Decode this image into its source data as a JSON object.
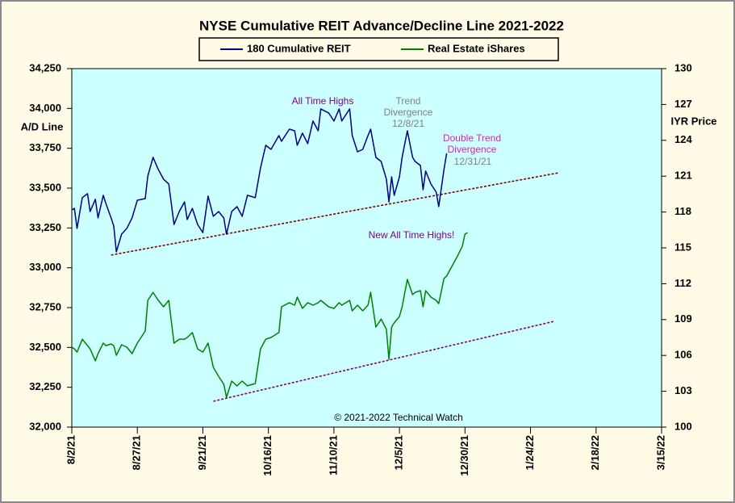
{
  "chart_data": {
    "type": "line",
    "title": "NYSE Cumulative  REIT Advance/Decline  Line 2021-2022",
    "y_label": "A/D Line",
    "y2_label": "IYR Price",
    "x": [
      "2021-08-02",
      "2021-08-03",
      "2021-08-04",
      "2021-08-06",
      "2021-08-08",
      "2021-08-09",
      "2021-08-11",
      "2021-08-12",
      "2021-08-14",
      "2021-08-15",
      "2021-08-17",
      "2021-08-18",
      "2021-08-19",
      "2021-08-21",
      "2021-08-23",
      "2021-08-25",
      "2021-08-27",
      "2021-08-30",
      "2021-08-31",
      "2021-09-02",
      "2021-09-04",
      "2021-09-06",
      "2021-09-08",
      "2021-09-10",
      "2021-09-12",
      "2021-09-14",
      "2021-09-15",
      "2021-09-17",
      "2021-09-19",
      "2021-09-21",
      "2021-09-23",
      "2021-09-25",
      "2021-09-27",
      "2021-09-29",
      "2021-09-30",
      "2021-10-02",
      "2021-10-04",
      "2021-10-06",
      "2021-10-08",
      "2021-10-11",
      "2021-10-13",
      "2021-10-15",
      "2021-10-17",
      "2021-10-20",
      "2021-10-21",
      "2021-10-24",
      "2021-10-26",
      "2021-10-27",
      "2021-10-29",
      "2021-10-31",
      "2021-11-02",
      "2021-11-04",
      "2021-11-05",
      "2021-11-08",
      "2021-11-10",
      "2021-11-12",
      "2021-11-13",
      "2021-11-16",
      "2021-11-17",
      "2021-11-19",
      "2021-11-21",
      "2021-11-23",
      "2021-11-24",
      "2021-11-26",
      "2021-11-28",
      "2021-11-30",
      "2021-12-01",
      "2021-12-02",
      "2021-12-03",
      "2021-12-05",
      "2021-12-06",
      "2021-12-08",
      "2021-12-10",
      "2021-12-11",
      "2021-12-13",
      "2021-12-14",
      "2021-12-15",
      "2021-12-17",
      "2021-12-19",
      "2021-12-20",
      "2021-12-22",
      "2021-12-23",
      "2021-12-25",
      "2021-12-27",
      "2021-12-29",
      "2021-12-30",
      "2021-12-31"
    ],
    "series": [
      {
        "name": "180 Cumulative REIT",
        "color": "#000080",
        "axis": "y",
        "values": [
          33363,
          33373,
          33247,
          33440,
          33465,
          33353,
          33430,
          33313,
          33455,
          33404,
          33313,
          33262,
          33100,
          33211,
          33247,
          33313,
          33424,
          33434,
          33576,
          33693,
          33617,
          33556,
          33526,
          33272,
          33353,
          33414,
          33303,
          33373,
          33272,
          33221,
          33450,
          33323,
          33353,
          33313,
          33211,
          33353,
          33384,
          33323,
          33455,
          33440,
          33627,
          33769,
          33743,
          33830,
          33794,
          33870,
          33860,
          33769,
          33845,
          33779,
          33921,
          33860,
          33997,
          33972,
          33921,
          33997,
          33921,
          33997,
          33830,
          33728,
          33743,
          33830,
          33870,
          33693,
          33667,
          33556,
          33414,
          33571,
          33455,
          33571,
          33693,
          33860,
          33693,
          33667,
          33642,
          33490,
          33607,
          33526,
          33475,
          33384,
          33617,
          33718,
          null,
          null,
          null,
          null,
          null
        ]
      },
      {
        "name": "Real Estate iShares",
        "color": "#008000",
        "axis": "y2",
        "values": [
          106.69,
          106.55,
          106.28,
          107.36,
          106.82,
          106.55,
          105.54,
          106.15,
          107.03,
          106.82,
          106.96,
          106.82,
          106.01,
          106.89,
          106.69,
          106.15,
          107.03,
          108.04,
          110.61,
          111.28,
          110.61,
          110.07,
          110.61,
          107.03,
          107.36,
          107.36,
          107.5,
          107.91,
          106.55,
          106.28,
          107.03,
          105.0,
          104.26,
          103.58,
          102.5,
          103.85,
          103.45,
          103.85,
          103.45,
          103.65,
          106.55,
          107.36,
          107.5,
          107.91,
          110.07,
          110.41,
          110.2,
          110.88,
          109.93,
          110.41,
          110.2,
          110.41,
          110.61,
          110.07,
          109.93,
          110.41,
          110.2,
          110.61,
          109.73,
          110.2,
          109.73,
          110.2,
          111.28,
          108.38,
          109.05,
          108.18,
          105.68,
          108.38,
          108.72,
          109.26,
          110.07,
          112.36,
          111.08,
          111.28,
          111.42,
          110.07,
          111.42,
          110.88,
          110.61,
          110.34,
          112.43,
          112.64,
          113.45,
          114.26,
          115.14,
          116.15,
          116.28
        ]
      }
    ],
    "trend_lines": [
      {
        "color": "#800000",
        "axis": "y",
        "x": [
          "2021-08-17",
          "2022-02-04"
        ],
        "values": [
          33080,
          33597
        ]
      },
      {
        "color": "#800080",
        "axis": "y2",
        "x": [
          "2021-09-25",
          "2022-02-02"
        ],
        "values": [
          102.16,
          108.85
        ]
      }
    ],
    "xlim": [
      "2021-08-02",
      "2022-03-15"
    ],
    "xticks": [
      {
        "value": "2021-08-02",
        "label": "8/2/21"
      },
      {
        "value": "2021-08-27",
        "label": "8/27/21"
      },
      {
        "value": "2021-09-21",
        "label": "9/21/21"
      },
      {
        "value": "2021-10-16",
        "label": "10/16/21"
      },
      {
        "value": "2021-11-10",
        "label": "11/10/21"
      },
      {
        "value": "2021-12-05",
        "label": "12/5/21"
      },
      {
        "value": "2021-12-30",
        "label": "12/30/21"
      },
      {
        "value": "2022-01-24",
        "label": "1/24/22"
      },
      {
        "value": "2022-02-18",
        "label": "2/18/22"
      },
      {
        "value": "2022-03-15",
        "label": "3/15/22"
      }
    ],
    "ylim": [
      32000,
      34250
    ],
    "yticks": [
      {
        "value": 32000,
        "label": "32,000"
      },
      {
        "value": 32250,
        "label": "32,250"
      },
      {
        "value": 32500,
        "label": "32,500"
      },
      {
        "value": 32750,
        "label": "32,750"
      },
      {
        "value": 33000,
        "label": "33,000"
      },
      {
        "value": 33250,
        "label": "33,250"
      },
      {
        "value": 33500,
        "label": "33,500"
      },
      {
        "value": 33750,
        "label": "33,750"
      },
      {
        "value": 34000,
        "label": "34,000"
      },
      {
        "value": 34250,
        "label": "34,250"
      }
    ],
    "y2lim": [
      100,
      130
    ],
    "y2ticks": [
      100,
      103,
      106,
      109,
      112,
      115,
      118,
      121,
      124,
      127,
      130
    ],
    "grid": false,
    "legend": "top",
    "annotations": [
      {
        "lines": [
          "All Time Highs"
        ],
        "color": "#800080"
      },
      {
        "lines": [
          "Trend",
          "Divergence",
          "12/8/21"
        ],
        "color": "#808080"
      },
      {
        "lines": [
          "Double Trend",
          "Divergence"
        ],
        "color": "#e020b0"
      },
      {
        "lines": [
          "12/31/21"
        ],
        "color": "#808080"
      },
      {
        "lines": [
          "New All Time Highs!"
        ],
        "color": "#800080"
      },
      {
        "lines": [
          "© 2021-2022  Technical  Watch"
        ],
        "color": "#000000"
      }
    ]
  }
}
